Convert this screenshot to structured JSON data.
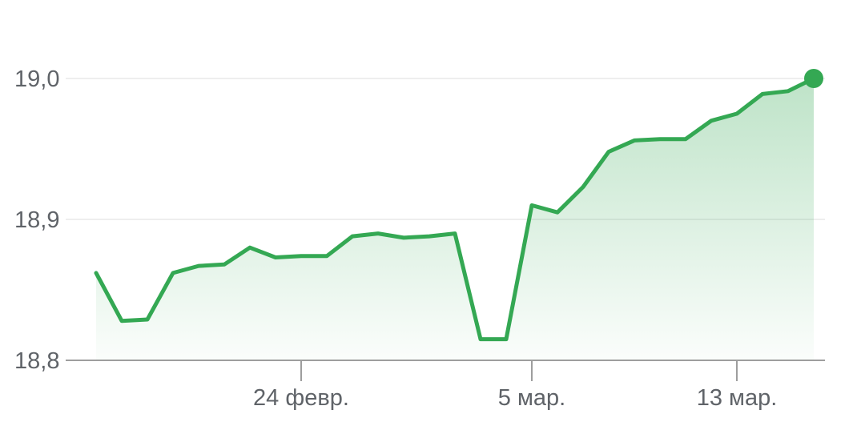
{
  "chart_data": {
    "type": "area",
    "title": "",
    "xlabel": "",
    "ylabel": "",
    "ylim": [
      18.8,
      19.0
    ],
    "y_ticks": [
      "18,8",
      "18,9",
      "19,0"
    ],
    "y_tick_values": [
      18.8,
      18.9,
      19.0
    ],
    "x_ticks": [
      {
        "label": "24 февр.",
        "date": "2023-02-24"
      },
      {
        "label": "5 мар.",
        "date": "2023-03-05"
      },
      {
        "label": "13 мар.",
        "date": "2023-03-13"
      }
    ],
    "grid": true,
    "colors": {
      "line": "#34a853",
      "fill": "#34a853",
      "grid": "#eeeeee",
      "axis": "#9e9e9e"
    },
    "series": [
      {
        "x": [
          "2023-02-16",
          "2023-02-17",
          "2023-02-18",
          "2023-02-19",
          "2023-02-20",
          "2023-02-21",
          "2023-02-22",
          "2023-02-23",
          "2023-02-24",
          "2023-02-25",
          "2023-02-26",
          "2023-02-27",
          "2023-02-28",
          "2023-03-01",
          "2023-03-02",
          "2023-03-03",
          "2023-03-04",
          "2023-03-05",
          "2023-03-06",
          "2023-03-07",
          "2023-03-08",
          "2023-03-09",
          "2023-03-10",
          "2023-03-11",
          "2023-03-12",
          "2023-03-13",
          "2023-03-14",
          "2023-03-15",
          "2023-03-16"
        ],
        "values": [
          18.862,
          18.828,
          18.829,
          18.862,
          18.867,
          18.868,
          18.88,
          18.873,
          18.874,
          18.874,
          18.888,
          18.89,
          18.887,
          18.888,
          18.89,
          18.815,
          18.815,
          18.91,
          18.905,
          18.923,
          18.948,
          18.956,
          18.957,
          18.957,
          18.97,
          18.975,
          18.989,
          18.991,
          19.0
        ]
      }
    ]
  }
}
